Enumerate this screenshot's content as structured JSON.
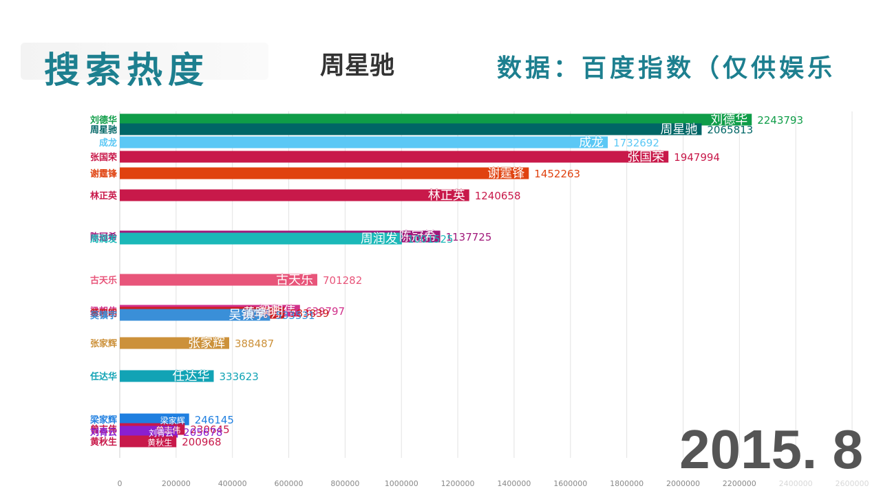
{
  "header": {
    "title": "搜索热度",
    "name": "周星驰",
    "source": "数据：百度指数（仅供娱乐"
  },
  "date_label": "2015. 8",
  "chart_data": {
    "type": "bar",
    "orientation": "horizontal",
    "xlim": [
      0,
      2600000
    ],
    "x_ticks": [
      0,
      200000,
      400000,
      600000,
      800000,
      1000000,
      1200000,
      1400000,
      1600000,
      1800000,
      2000000,
      2200000,
      2400000,
      2600000
    ],
    "grid": true,
    "series": [
      {
        "name": "刘德华",
        "value": 2243793,
        "color": "#0f9d48"
      },
      {
        "name": "周星驰",
        "value": 2065813,
        "color": "#006666"
      },
      {
        "name": "成龙",
        "value": 1732692,
        "color": "#5bc8f5"
      },
      {
        "name": "张国荣",
        "value": 1947994,
        "color": "#c8194a"
      },
      {
        "name": "谢霆锋",
        "value": 1452263,
        "color": "#e0420f"
      },
      {
        "name": "林正英",
        "value": 1240658,
        "color": "#c8194a"
      },
      {
        "name": "陈冠希",
        "value": 1137725,
        "color": "#a0187a"
      },
      {
        "name": "周润发",
        "value": 1001525,
        "color": "#1bb8b8"
      },
      {
        "name": "古天乐",
        "value": 701282,
        "color": "#e8557a"
      },
      {
        "name": "梁朝伟",
        "value": 639797,
        "color": "#d0308a"
      },
      {
        "name": "黄晓明",
        "value": 583839,
        "color": "#cc1f1f"
      },
      {
        "name": "吴镇宇",
        "value": 533531,
        "color": "#3a8fd8"
      },
      {
        "name": "张家辉",
        "value": 388487,
        "color": "#cc913a"
      },
      {
        "name": "任达华",
        "value": 333623,
        "color": "#12a3b5"
      },
      {
        "name": "梁家辉",
        "value": 246145,
        "color": "#1f7fe0"
      },
      {
        "name": "曾志伟",
        "value": 230645,
        "color": "#c8194a"
      },
      {
        "name": "刘青云",
        "value": 205678,
        "color": "#8a1fd0"
      },
      {
        "name": "黄秋生",
        "value": 200968,
        "color": "#c8194a"
      }
    ]
  }
}
